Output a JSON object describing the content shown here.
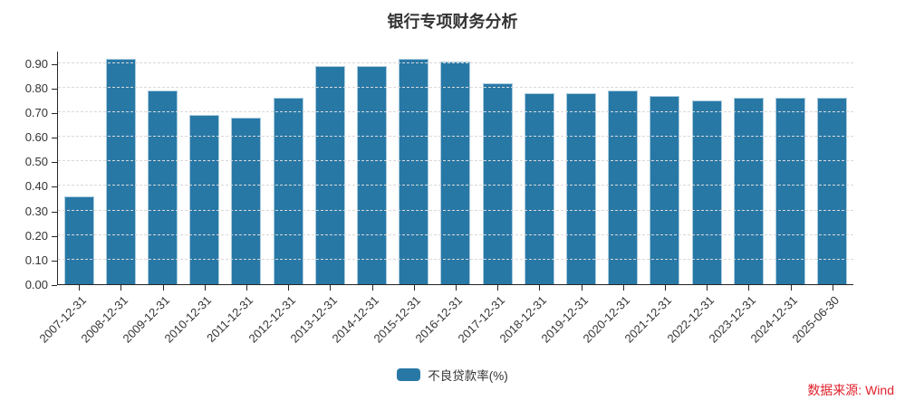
{
  "header": {
    "title": "银行专项财务分析"
  },
  "legend": {
    "items": [
      {
        "label": "不良贷款率(%)",
        "color": "#2878a6"
      }
    ]
  },
  "footer": {
    "source": "数据来源: Wind"
  },
  "colors": {
    "bar": "#2878a6",
    "bar_border": "#a9cbdd",
    "axis": "#262626",
    "grid": "#d9d9d9",
    "text": "#333333",
    "source_red": "#e0202c",
    "background": "#ffffff"
  },
  "chart_data": {
    "type": "bar",
    "title": "银行专项财务分析",
    "categories": [
      "2007-12-31",
      "2008-12-31",
      "2009-12-31",
      "2010-12-31",
      "2011-12-31",
      "2012-12-31",
      "2013-12-31",
      "2014-12-31",
      "2015-12-31",
      "2016-12-31",
      "2017-12-31",
      "2018-12-31",
      "2019-12-31",
      "2020-12-31",
      "2021-12-31",
      "2022-12-31",
      "2023-12-31",
      "2024-12-31",
      "2025-06-30"
    ],
    "series": [
      {
        "name": "不良贷款率(%)",
        "color": "#2878a6",
        "values": [
          0.36,
          0.92,
          0.79,
          0.69,
          0.68,
          0.76,
          0.89,
          0.89,
          0.92,
          0.91,
          0.82,
          0.78,
          0.78,
          0.79,
          0.77,
          0.75,
          0.76,
          0.76,
          0.76
        ]
      }
    ],
    "xlabel": "",
    "ylabel": "",
    "ylim": [
      0,
      0.95
    ],
    "y_ticks": {
      "values": [
        0,
        0.1,
        0.2,
        0.3,
        0.4,
        0.5,
        0.6,
        0.7,
        0.8,
        0.9
      ],
      "labels": [
        "0.00",
        "0.10",
        "0.20",
        "0.30",
        "0.40",
        "0.50",
        "0.60",
        "0.70",
        "0.80",
        "0.90"
      ]
    },
    "grid": {
      "horizontal": true,
      "style": "dashed"
    },
    "legend_position": "bottom",
    "x_label_rotation": 45
  }
}
